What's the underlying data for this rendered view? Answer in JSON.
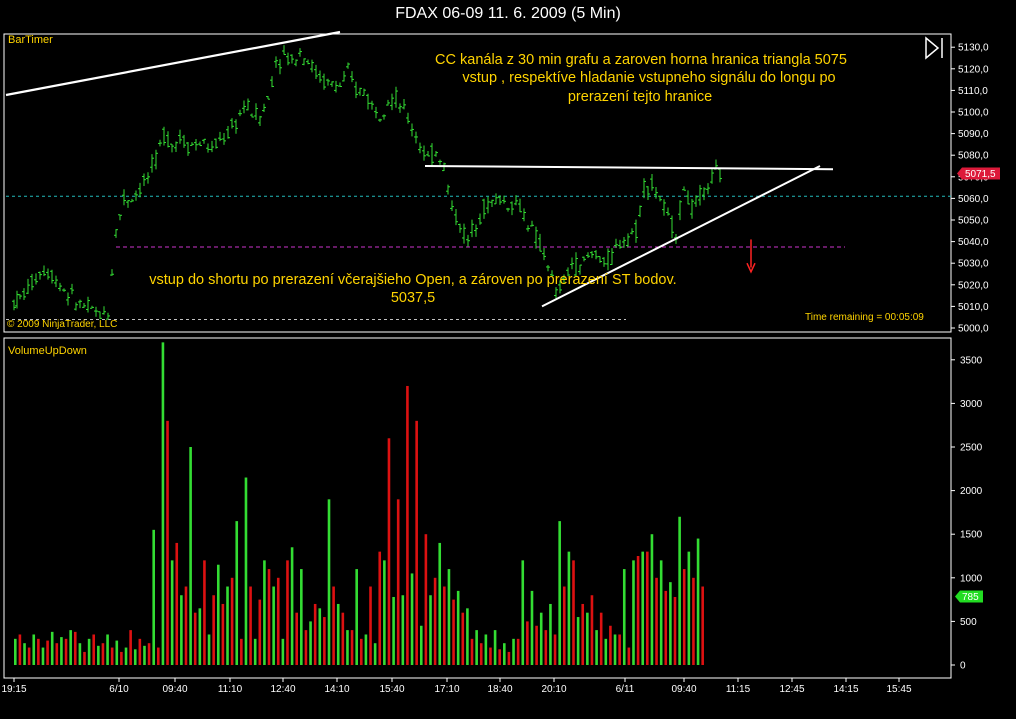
{
  "window": {
    "title": "FDAX 06-09  11. 6. 2009 (5 Min)"
  },
  "colors": {
    "up": "#33dd33",
    "down": "#dd1111",
    "text": "#ffd400",
    "grid": "#ffffff",
    "open_line": "#cc33cc",
    "cyan_line": "#22bbbb"
  },
  "price_panel": {
    "indicator_label": "BarTimer",
    "copyright": "© 2009 NinjaTrader, LLC",
    "time_remaining": "Time remaining = 00:05:09",
    "annotation_top": [
      "CC kanála z 30 min grafu a zaroven horna hranica triangla 5075",
      "vstup , respektíve hladanie vstupneho signálu do longu po",
      "prerazení tejto hranice"
    ],
    "annotation_bottom": [
      "vstup do shortu po prerazení včerajšieho Open, a zároven  po prerazení ST bodov.",
      "5037,5"
    ],
    "last_price_label": "5071,5"
  },
  "volume_panel": {
    "indicator_label": "VolumeUpDown",
    "last_volume_label": "785"
  },
  "chart_data": [
    {
      "type": "candlestick",
      "title": "FDAX 06-09  11. 6. 2009 (5 Min)",
      "y_ticks": [
        "5130,0",
        "5120,0",
        "5110,0",
        "5100,0",
        "5090,0",
        "5080,0",
        "5070,0",
        "5060,0",
        "5050,0",
        "5040,0",
        "5030,0",
        "5020,0",
        "5010,0",
        "5000,0"
      ],
      "ylim": [
        5000,
        5135
      ],
      "x_ticks": [
        "19:15",
        "6/10",
        "09:40",
        "11:10",
        "12:40",
        "14:10",
        "15:40",
        "17:10",
        "18:40",
        "20:10",
        "6/11",
        "09:40",
        "11:15",
        "12:45",
        "14:15",
        "15:45"
      ],
      "lines": [
        {
          "name": "resistance-5075",
          "value": 5075
        },
        {
          "name": "cyan-level",
          "value": 5061
        },
        {
          "name": "previous-open",
          "value": 5037.5
        },
        {
          "name": "lower-dashed",
          "value": 5004
        }
      ],
      "points": [
        {
          "t": 0,
          "v": 5012
        },
        {
          "t": 6,
          "v": 5014
        },
        {
          "t": 14,
          "v": 5018
        },
        {
          "t": 22,
          "v": 5024
        },
        {
          "t": 30,
          "v": 5027
        },
        {
          "t": 38,
          "v": 5025
        },
        {
          "t": 46,
          "v": 5020
        },
        {
          "t": 54,
          "v": 5016
        },
        {
          "t": 62,
          "v": 5012
        },
        {
          "t": 70,
          "v": 5010
        },
        {
          "t": 78,
          "v": 5008
        },
        {
          "t": 86,
          "v": 5006
        },
        {
          "t": 94,
          "v": 5007
        },
        {
          "t": 102,
          "v": 5045
        },
        {
          "t": 110,
          "v": 5060
        },
        {
          "t": 118,
          "v": 5060
        },
        {
          "t": 126,
          "v": 5065
        },
        {
          "t": 134,
          "v": 5070
        },
        {
          "t": 142,
          "v": 5078
        },
        {
          "t": 150,
          "v": 5090
        },
        {
          "t": 158,
          "v": 5085
        },
        {
          "t": 166,
          "v": 5088
        },
        {
          "t": 174,
          "v": 5085
        },
        {
          "t": 182,
          "v": 5085
        },
        {
          "t": 190,
          "v": 5086
        },
        {
          "t": 198,
          "v": 5082
        },
        {
          "t": 206,
          "v": 5087
        },
        {
          "t": 214,
          "v": 5090
        },
        {
          "t": 222,
          "v": 5095
        },
        {
          "t": 230,
          "v": 5103
        },
        {
          "t": 238,
          "v": 5100
        },
        {
          "t": 246,
          "v": 5098
        },
        {
          "t": 254,
          "v": 5106
        },
        {
          "t": 262,
          "v": 5124
        },
        {
          "t": 270,
          "v": 5126
        },
        {
          "t": 278,
          "v": 5124
        },
        {
          "t": 286,
          "v": 5128
        },
        {
          "t": 294,
          "v": 5124
        },
        {
          "t": 302,
          "v": 5118
        },
        {
          "t": 310,
          "v": 5114
        },
        {
          "t": 318,
          "v": 5113
        },
        {
          "t": 326,
          "v": 5112
        },
        {
          "t": 334,
          "v": 5118
        },
        {
          "t": 342,
          "v": 5110
        },
        {
          "t": 350,
          "v": 5110
        },
        {
          "t": 358,
          "v": 5103
        },
        {
          "t": 366,
          "v": 5100
        },
        {
          "t": 374,
          "v": 5106
        },
        {
          "t": 382,
          "v": 5106
        },
        {
          "t": 390,
          "v": 5100
        },
        {
          "t": 398,
          "v": 5093
        },
        {
          "t": 406,
          "v": 5085
        },
        {
          "t": 414,
          "v": 5078
        },
        {
          "t": 422,
          "v": 5082
        },
        {
          "t": 430,
          "v": 5075
        },
        {
          "t": 438,
          "v": 5055
        },
        {
          "t": 446,
          "v": 5048
        },
        {
          "t": 454,
          "v": 5040
        },
        {
          "t": 462,
          "v": 5050
        },
        {
          "t": 470,
          "v": 5056
        },
        {
          "t": 478,
          "v": 5058
        },
        {
          "t": 486,
          "v": 5060
        },
        {
          "t": 494,
          "v": 5057
        },
        {
          "t": 502,
          "v": 5058
        },
        {
          "t": 510,
          "v": 5053
        },
        {
          "t": 518,
          "v": 5045
        },
        {
          "t": 526,
          "v": 5038
        },
        {
          "t": 534,
          "v": 5030
        },
        {
          "t": 542,
          "v": 5015
        },
        {
          "t": 550,
          "v": 5022
        },
        {
          "t": 558,
          "v": 5030
        },
        {
          "t": 566,
          "v": 5028
        },
        {
          "t": 574,
          "v": 5033
        },
        {
          "t": 582,
          "v": 5035
        },
        {
          "t": 590,
          "v": 5030
        },
        {
          "t": 598,
          "v": 5033
        },
        {
          "t": 606,
          "v": 5040
        },
        {
          "t": 614,
          "v": 5043
        },
        {
          "t": 622,
          "v": 5045
        },
        {
          "t": 630,
          "v": 5066
        },
        {
          "t": 638,
          "v": 5066
        },
        {
          "t": 646,
          "v": 5060
        },
        {
          "t": 654,
          "v": 5050
        },
        {
          "t": 662,
          "v": 5045
        },
        {
          "t": 670,
          "v": 5065
        },
        {
          "t": 678,
          "v": 5055
        },
        {
          "t": 686,
          "v": 5060
        },
        {
          "t": 694,
          "v": 5066
        },
        {
          "t": 702,
          "v": 5071.5
        }
      ]
    },
    {
      "type": "bar",
      "title": "VolumeUpDown",
      "y_ticks": [
        "3500",
        "3000",
        "2500",
        "2000",
        "1500",
        "1000",
        "500",
        "0"
      ],
      "ylim": [
        0,
        3700
      ],
      "series": [
        {
          "name": "up",
          "values": [
            300,
            250,
            350,
            200,
            380,
            320,
            400,
            250,
            300,
            220,
            350,
            280,
            200,
            180,
            220,
            1550,
            3700,
            1200,
            800,
            2500,
            650,
            350,
            1150,
            900,
            1650,
            2150,
            300,
            1200,
            900,
            300,
            1350,
            1100,
            500,
            650,
            1900,
            700,
            400,
            1100,
            350,
            250,
            1200,
            780,
            800,
            1050,
            450,
            800,
            1400,
            1100,
            850,
            650,
            400,
            350,
            400,
            250,
            300,
            1200,
            850,
            600,
            700,
            1650,
            1300,
            550,
            600,
            400,
            300,
            350,
            1100,
            1200,
            1300,
            1500,
            1200,
            950,
            1700,
            1300,
            1450
          ]
        },
        {
          "name": "down",
          "values": [
            350,
            200,
            300,
            280,
            250,
            300,
            380,
            150,
            350,
            250,
            200,
            150,
            400,
            300,
            250,
            200,
            2800,
            1400,
            900,
            600,
            1200,
            800,
            700,
            1000,
            300,
            900,
            750,
            1100,
            1000,
            1200,
            600,
            400,
            700,
            550,
            900,
            600,
            400,
            300,
            900,
            1300,
            2600,
            1900,
            3200,
            2800,
            1500,
            1000,
            900,
            750,
            600,
            300,
            250,
            200,
            180,
            150,
            300,
            500,
            450,
            400,
            350,
            900,
            1200,
            700,
            800,
            600,
            450,
            350,
            200,
            1250,
            1300,
            1000,
            850,
            780,
            1100,
            1000,
            900
          ]
        }
      ]
    }
  ]
}
